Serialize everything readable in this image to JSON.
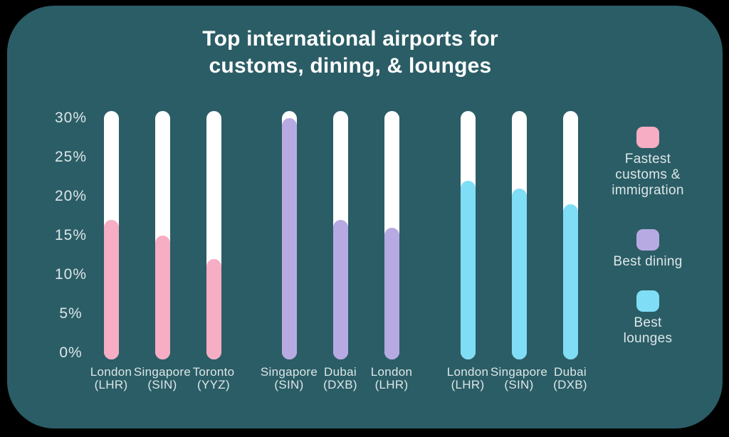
{
  "title": {
    "line1": "Top international airports for",
    "line2": "customs, dining, & lounges"
  },
  "colors": {
    "background": "#000000",
    "card": "#2B5D66",
    "bar_track": "#FFFFFF",
    "pink": "#F7ADC3",
    "purple": "#B7AAE3",
    "cyan": "#7FDDF6",
    "title_text": "#FFFFFF",
    "axis_text": "#DCE7E8"
  },
  "y_axis": {
    "tick_labels": [
      "0%",
      "5%",
      "10%",
      "15%",
      "20%",
      "25%",
      "30%"
    ],
    "min": 0,
    "max": 30
  },
  "legend": {
    "items": [
      {
        "name": "Fastest customs & immigration",
        "lines": [
          "Fastest",
          "customs &",
          "immigration"
        ],
        "color": "#F7ADC3"
      },
      {
        "name": "Best dining",
        "lines": [
          "Best dining"
        ],
        "color": "#B7AAE3"
      },
      {
        "name": "Best lounges",
        "lines": [
          "Best",
          "lounges"
        ],
        "color": "#7FDDF6"
      }
    ]
  },
  "chart_data": {
    "type": "bar",
    "title": "Top international airports for customs, dining, & lounges",
    "xlabel": "",
    "ylabel": "",
    "ylim": [
      0,
      30
    ],
    "ytick_labels": [
      "0%",
      "5%",
      "10%",
      "15%",
      "20%",
      "25%",
      "30%"
    ],
    "grid": false,
    "legend_position": "right",
    "bar_style": "rounded pill on white 0-30% track",
    "series": [
      {
        "name": "Fastest customs & immigration",
        "color": "#F7ADC3",
        "points": [
          {
            "category": "London (LHR)",
            "value": 17
          },
          {
            "category": "Singapore (SIN)",
            "value": 15
          },
          {
            "category": "Toronto (YYZ)",
            "value": 12
          }
        ]
      },
      {
        "name": "Best dining",
        "color": "#B7AAE3",
        "points": [
          {
            "category": "Singapore (SIN)",
            "value": 30
          },
          {
            "category": "Dubai (DXB)",
            "value": 17
          },
          {
            "category": "London (LHR)",
            "value": 16
          }
        ]
      },
      {
        "name": "Best lounges",
        "color": "#7FDDF6",
        "points": [
          {
            "category": "London (LHR)",
            "value": 22
          },
          {
            "category": "Singapore (SIN)",
            "value": 21
          },
          {
            "category": "Dubai (DXB)",
            "value": 19
          }
        ]
      }
    ]
  }
}
